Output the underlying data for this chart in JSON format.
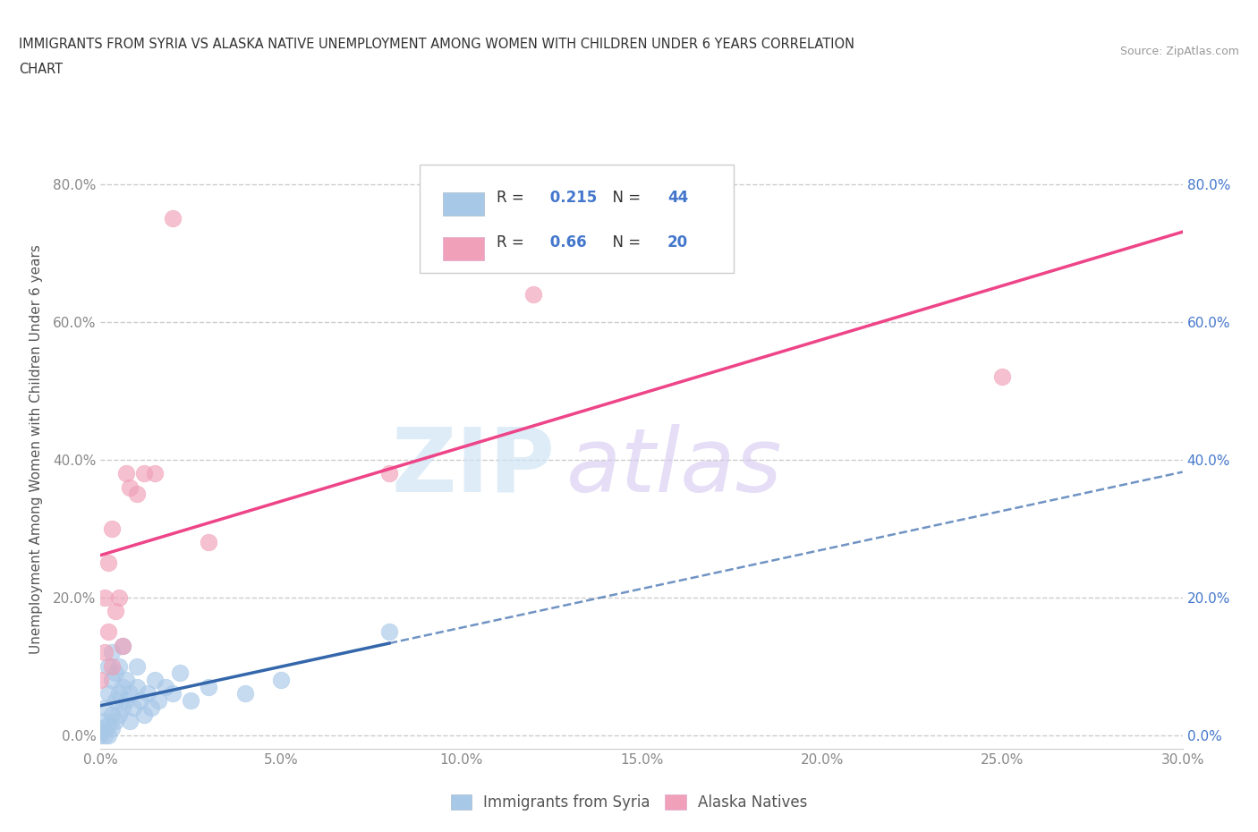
{
  "title_line1": "IMMIGRANTS FROM SYRIA VS ALASKA NATIVE UNEMPLOYMENT AMONG WOMEN WITH CHILDREN UNDER 6 YEARS CORRELATION",
  "title_line2": "CHART",
  "source": "Source: ZipAtlas.com",
  "ylabel": "Unemployment Among Women with Children Under 6 years",
  "xlim": [
    0.0,
    0.3
  ],
  "ylim": [
    -0.02,
    0.85
  ],
  "yticks": [
    0.0,
    0.2,
    0.4,
    0.6,
    0.8
  ],
  "ytick_labels": [
    "0.0%",
    "20.0%",
    "40.0%",
    "60.0%",
    "80.0%"
  ],
  "xticks": [
    0.0,
    0.05,
    0.1,
    0.15,
    0.2,
    0.25,
    0.3
  ],
  "xtick_labels": [
    "0.0%",
    "5.0%",
    "10.0%",
    "15.0%",
    "20.0%",
    "25.0%",
    "30.0%"
  ],
  "syria_R": 0.215,
  "syria_N": 44,
  "alaska_R": 0.66,
  "alaska_N": 20,
  "syria_color": "#a8c8e8",
  "alaska_color": "#f0a0b8",
  "syria_line_color": "#3366aa",
  "alaska_line_color": "#ee4488",
  "syria_scatter": [
    [
      0.0,
      0.0
    ],
    [
      0.0,
      0.005
    ],
    [
      0.0,
      0.01
    ],
    [
      0.001,
      0.0
    ],
    [
      0.001,
      0.02
    ],
    [
      0.001,
      0.04
    ],
    [
      0.002,
      0.0
    ],
    [
      0.002,
      0.015
    ],
    [
      0.002,
      0.06
    ],
    [
      0.002,
      0.1
    ],
    [
      0.003,
      0.01
    ],
    [
      0.003,
      0.03
    ],
    [
      0.003,
      0.08
    ],
    [
      0.003,
      0.12
    ],
    [
      0.004,
      0.02
    ],
    [
      0.004,
      0.05
    ],
    [
      0.004,
      0.09
    ],
    [
      0.005,
      0.03
    ],
    [
      0.005,
      0.06
    ],
    [
      0.005,
      0.1
    ],
    [
      0.006,
      0.04
    ],
    [
      0.006,
      0.07
    ],
    [
      0.006,
      0.13
    ],
    [
      0.007,
      0.05
    ],
    [
      0.007,
      0.08
    ],
    [
      0.008,
      0.02
    ],
    [
      0.008,
      0.06
    ],
    [
      0.009,
      0.04
    ],
    [
      0.01,
      0.07
    ],
    [
      0.01,
      0.1
    ],
    [
      0.011,
      0.05
    ],
    [
      0.012,
      0.03
    ],
    [
      0.013,
      0.06
    ],
    [
      0.014,
      0.04
    ],
    [
      0.015,
      0.08
    ],
    [
      0.016,
      0.05
    ],
    [
      0.018,
      0.07
    ],
    [
      0.02,
      0.06
    ],
    [
      0.022,
      0.09
    ],
    [
      0.025,
      0.05
    ],
    [
      0.03,
      0.07
    ],
    [
      0.04,
      0.06
    ],
    [
      0.05,
      0.08
    ],
    [
      0.08,
      0.15
    ]
  ],
  "alaska_scatter": [
    [
      0.0,
      0.08
    ],
    [
      0.001,
      0.12
    ],
    [
      0.001,
      0.2
    ],
    [
      0.002,
      0.15
    ],
    [
      0.002,
      0.25
    ],
    [
      0.003,
      0.1
    ],
    [
      0.003,
      0.3
    ],
    [
      0.004,
      0.18
    ],
    [
      0.005,
      0.2
    ],
    [
      0.006,
      0.13
    ],
    [
      0.007,
      0.38
    ],
    [
      0.008,
      0.36
    ],
    [
      0.01,
      0.35
    ],
    [
      0.012,
      0.38
    ],
    [
      0.015,
      0.38
    ],
    [
      0.02,
      0.75
    ],
    [
      0.03,
      0.28
    ],
    [
      0.08,
      0.38
    ],
    [
      0.12,
      0.64
    ],
    [
      0.25,
      0.52
    ]
  ],
  "watermark_zip": "ZIP",
  "watermark_atlas": "atlas",
  "background_color": "#ffffff",
  "grid_color": "#cccccc"
}
